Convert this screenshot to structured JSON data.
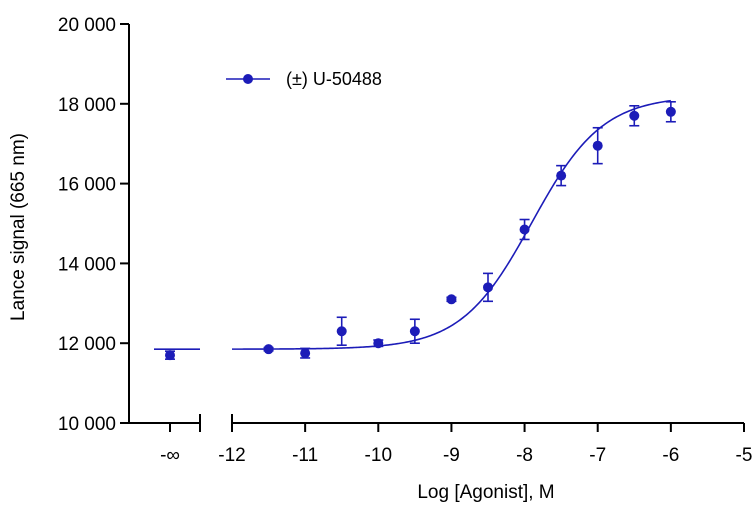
{
  "chart_data": {
    "type": "scatter",
    "title": "",
    "xlabel": "Log [Agonist], M",
    "ylabel": "Lance signal (665 nm)",
    "xlim": [
      -12,
      -5
    ],
    "ylim": [
      10000,
      20000
    ],
    "x_ticks": [
      -12,
      -11,
      -10,
      -9,
      -8,
      -7,
      -6,
      -5
    ],
    "x_tick_labels": [
      "-12",
      "-11",
      "-10",
      "-9",
      "-8",
      "-7",
      "-6",
      "-5"
    ],
    "y_ticks": [
      10000,
      12000,
      14000,
      16000,
      18000,
      20000
    ],
    "y_tick_labels": [
      "10 000",
      "12 000",
      "14 000",
      "16 000",
      "18 000",
      "20 000"
    ],
    "neg_inf_label": "-∞",
    "color": "#1c1cb8",
    "legend_position": "top-left",
    "series": [
      {
        "name": "(±) U-50488",
        "control": {
          "x_label": "-∞",
          "y": 11700,
          "err": 100,
          "line_y": 11850
        },
        "points": [
          {
            "x": -11.5,
            "y": 11850,
            "err": 40
          },
          {
            "x": -11.0,
            "y": 11750,
            "err": 120
          },
          {
            "x": -10.5,
            "y": 12300,
            "err": 350
          },
          {
            "x": -10.0,
            "y": 12000,
            "err": 80
          },
          {
            "x": -9.5,
            "y": 12300,
            "err": 300
          },
          {
            "x": -9.0,
            "y": 13100,
            "err": 50
          },
          {
            "x": -8.5,
            "y": 13400,
            "err": 350
          },
          {
            "x": -8.0,
            "y": 14850,
            "err": 250
          },
          {
            "x": -7.5,
            "y": 16200,
            "err": 250
          },
          {
            "x": -7.0,
            "y": 16950,
            "err": 450
          },
          {
            "x": -6.5,
            "y": 17700,
            "err": 250
          },
          {
            "x": -6.0,
            "y": 17800,
            "err": 250
          }
        ],
        "fit": {
          "model": "sigmoid",
          "bottom": 11850,
          "top": 18200,
          "logEC50": -7.9,
          "hill": 0.9
        }
      }
    ]
  }
}
